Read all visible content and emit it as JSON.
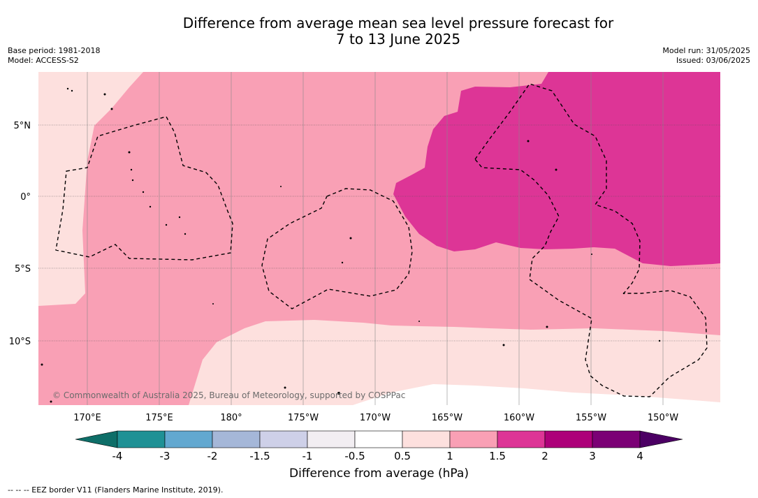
{
  "title": {
    "line1": "Difference from average mean sea level pressure forecast for",
    "line2": "7 to 13 June 2025"
  },
  "meta_left": {
    "base_period": "Base period: 1981-2018",
    "model": "Model: ACCESS-S2"
  },
  "meta_right": {
    "model_run": "Model run: 31/05/2025",
    "issued": "Issued: 03/06/2025"
  },
  "map": {
    "lat_labels": [
      "5°N",
      "0°",
      "5°S",
      "10°S"
    ],
    "lon_labels": [
      "170°E",
      "175°E",
      "180°",
      "175°W",
      "170°W",
      "165°W",
      "160°W",
      "155°W",
      "150°W"
    ],
    "copyright": "© Commonwealth of Australia 2025, Bureau of Meteorology, supported by COSPPac",
    "colors": {
      "band_0_5_1": "#fde0de",
      "band_1_1_5": "#f9a0b5",
      "band_1_5_2": "#dd3596",
      "band_below_0_5": "#ffffff"
    }
  },
  "colorbar": {
    "tick_labels": [
      "-4",
      "-3",
      "-2",
      "-1.5",
      "-1",
      "-0.5",
      "0.5",
      "1",
      "1.5",
      "2",
      "3",
      "4"
    ],
    "colors": [
      "#0e6e68",
      "#1f9195",
      "#62a8d0",
      "#a5b7d8",
      "#ced0e8",
      "#f2eef2",
      "#ffffff",
      "#fde0de",
      "#f9a0b5",
      "#dd3596",
      "#ad0079",
      "#7b0075",
      "#4c0064"
    ],
    "title": "Difference from average (hPa)"
  },
  "footnote": "--  --  -- EEZ border V11 (Flanders Marine Institute, 2019)."
}
